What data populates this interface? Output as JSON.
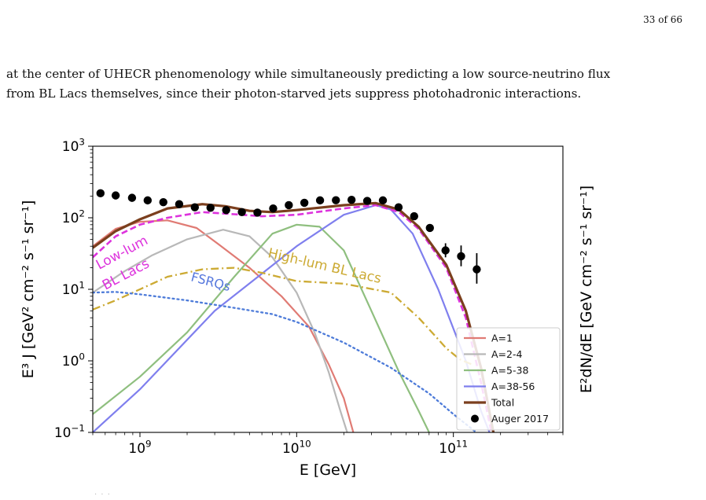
{
  "page": {
    "number": "33 of 66",
    "paragraph_lines": [
      "at the center of UHECR phenomenology while simultaneously predicting a low source-neutrino flux",
      "from BL Lacs themselves, since their photon-starved jets suppress photohadronic interactions."
    ]
  },
  "chart_data": {
    "type": "line",
    "x_scale": "log",
    "y_scale": "log",
    "xlim": [
      500000000,
      500000000000
    ],
    "ylim": [
      0.1,
      1000
    ],
    "xlabel": "E [GeV]",
    "ylabel_left": "E³ J [GeV² cm⁻² s⁻¹ sr⁻¹]",
    "ylabel_right": "E²dN/dE [GeV cm⁻² s⁻¹ sr⁻¹]",
    "x_ticks": [
      {
        "value": 1000000000,
        "label": "10",
        "exp": "9"
      },
      {
        "value": 10000000000,
        "label": "10",
        "exp": "10"
      },
      {
        "value": 100000000000,
        "label": "10",
        "exp": "11"
      }
    ],
    "y_ticks": [
      {
        "value": 0.1,
        "label": "10",
        "exp": "−1"
      },
      {
        "value": 1,
        "label": "10",
        "exp": "0"
      },
      {
        "value": 10,
        "label": "10",
        "exp": "1"
      },
      {
        "value": 100,
        "label": "10",
        "exp": "2"
      },
      {
        "value": 1000,
        "label": "10",
        "exp": "3"
      }
    ],
    "annotations": [
      {
        "text": "Low-lum",
        "color": "#dd33dd"
      },
      {
        "text": "BL Lacs",
        "color": "#dd33dd"
      },
      {
        "text": "High-lum BL Lacs",
        "color": "#ccaa33"
      },
      {
        "text": "FSRQs",
        "color": "#5577dd"
      }
    ],
    "legend": {
      "placement": "lower-right",
      "entries": [
        {
          "label": "A=1",
          "color": "#e07b74",
          "style": "line"
        },
        {
          "label": "A=2-4",
          "color": "#b8b8b8",
          "style": "line"
        },
        {
          "label": "A=5-38",
          "color": "#8fbf7f",
          "style": "line"
        },
        {
          "label": "A=38-56",
          "color": "#7f7fee",
          "style": "line"
        },
        {
          "label": "Total",
          "color": "#7b3f1e",
          "style": "thick-line"
        },
        {
          "label": "Auger 2017",
          "color": "#000000",
          "style": "marker"
        }
      ]
    },
    "series": [
      {
        "name": "A=1",
        "color": "#e07b74",
        "width": 2.2,
        "dash": "",
        "x": [
          500000000.0,
          700000000.0,
          1000000000.0,
          1500000000.0,
          2300000000.0,
          3200000000.0,
          5000000000.0,
          8000000000.0,
          12000000000.0,
          16000000000.0,
          20000000000.0,
          23000000000.0
        ],
        "y": [
          40,
          70,
          88,
          92,
          72,
          42,
          20,
          8,
          3,
          0.9,
          0.3,
          0.1
        ]
      },
      {
        "name": "A=2-4",
        "color": "#b8b8b8",
        "width": 2.2,
        "dash": "",
        "x": [
          500000000.0,
          800000000.0,
          1200000000.0,
          2000000000.0,
          3400000000.0,
          5000000000.0,
          7000000000.0,
          10000000000.0,
          13000000000.0,
          16000000000.0,
          19000000000.0,
          21000000000.0
        ],
        "y": [
          9,
          18,
          30,
          50,
          68,
          55,
          28,
          9,
          2.5,
          0.7,
          0.2,
          0.1
        ]
      },
      {
        "name": "A=5-38",
        "color": "#8fbf7f",
        "width": 2.2,
        "dash": "",
        "x": [
          500000000.0,
          1000000000.0,
          2000000000.0,
          4000000000.0,
          7000000000.0,
          10000000000.0,
          14000000000.0,
          20000000000.0,
          30000000000.0,
          45000000000.0,
          60000000000.0,
          70000000000.0
        ],
        "y": [
          0.18,
          0.6,
          2.5,
          15,
          60,
          80,
          75,
          35,
          5,
          0.7,
          0.2,
          0.1
        ]
      },
      {
        "name": "A=38-56",
        "color": "#7f7fee",
        "width": 2.2,
        "dash": "",
        "x": [
          500000000.0,
          1000000000.0,
          3000000000.0,
          10000000000.0,
          20000000000.0,
          32000000000.0,
          40000000000.0,
          55000000000.0,
          80000000000.0,
          120000000000.0,
          150000000000.0,
          170000000000.0
        ],
        "y": [
          0.1,
          0.4,
          5,
          40,
          110,
          150,
          130,
          60,
          10,
          1,
          0.2,
          0.1
        ]
      },
      {
        "name": "Low-lum BL Lacs",
        "color": "#dd33dd",
        "width": 2.6,
        "dash": "8,4",
        "x": [
          500000000.0,
          700000000.0,
          1000000000.0,
          1500000000.0,
          2500000000.0,
          4000000000.0,
          6000000000.0,
          10000000000.0,
          20000000000.0,
          32000000000.0,
          45000000000.0,
          60000000000.0,
          90000000000.0,
          120000000000.0,
          150000000000.0,
          175000000000.0
        ],
        "y": [
          28,
          55,
          80,
          100,
          120,
          112,
          105,
          110,
          135,
          150,
          120,
          70,
          20,
          4,
          0.5,
          0.1
        ]
      },
      {
        "name": "Total",
        "color": "#7b3f1e",
        "width": 3.2,
        "dash": "",
        "x": [
          500000000.0,
          700000000.0,
          1000000000.0,
          1500000000.0,
          2500000000.0,
          3500000000.0,
          5000000000.0,
          7000000000.0,
          10000000000.0,
          20000000000.0,
          32000000000.0,
          45000000000.0,
          60000000000.0,
          90000000000.0,
          120000000000.0,
          150000000000.0,
          180000000000.0
        ],
        "y": [
          38,
          65,
          95,
          135,
          155,
          145,
          125,
          120,
          128,
          150,
          160,
          130,
          75,
          22,
          5,
          0.8,
          0.1
        ]
      },
      {
        "name": "High-lum BL Lacs",
        "color": "#ccaa33",
        "width": 2.3,
        "dash": "10,4,2,4",
        "x": [
          500000000.0,
          700000000.0,
          1000000000.0,
          1500000000.0,
          2500000000.0,
          4000000000.0,
          6000000000.0,
          10000000000.0,
          20000000000.0,
          40000000000.0,
          60000000000.0,
          80000000000.0,
          90000000000.0,
          110000000000.0,
          130000000000.0
        ],
        "y": [
          5.2,
          7,
          10,
          15,
          19,
          20,
          17,
          13,
          12,
          9,
          4,
          2,
          1.5,
          1.05,
          0.9
        ]
      },
      {
        "name": "FSRQs",
        "color": "#4d7bd9",
        "width": 2.3,
        "dash": "2,4",
        "x": [
          500000000.0,
          700000000.0,
          1000000000.0,
          2000000000.0,
          4000000000.0,
          7000000000.0,
          10000000000.0,
          20000000000.0,
          40000000000.0,
          70000000000.0,
          100000000000.0,
          140000000000.0
        ],
        "y": [
          9,
          9.2,
          8.5,
          7,
          5.5,
          4.5,
          3.5,
          1.8,
          0.8,
          0.35,
          0.18,
          0.1
        ]
      }
    ],
    "data_points": {
      "name": "Auger 2017",
      "color": "#000000",
      "points": [
        {
          "x": 560000000.0,
          "y": 220
        },
        {
          "x": 700000000.0,
          "y": 205
        },
        {
          "x": 890000000.0,
          "y": 190
        },
        {
          "x": 1120000000.0,
          "y": 175
        },
        {
          "x": 1410000000.0,
          "y": 165
        },
        {
          "x": 1780000000.0,
          "y": 155
        },
        {
          "x": 2240000000.0,
          "y": 140
        },
        {
          "x": 2820000000.0,
          "y": 138
        },
        {
          "x": 3550000000.0,
          "y": 128
        },
        {
          "x": 4470000000.0,
          "y": 120
        },
        {
          "x": 5620000000.0,
          "y": 118
        },
        {
          "x": 7080000000.0,
          "y": 135
        },
        {
          "x": 8910000000.0,
          "y": 150
        },
        {
          "x": 11200000000.0,
          "y": 162
        },
        {
          "x": 14100000000.0,
          "y": 175
        },
        {
          "x": 17800000000.0,
          "y": 176
        },
        {
          "x": 22400000000.0,
          "y": 178
        },
        {
          "x": 28200000000.0,
          "y": 172
        },
        {
          "x": 35500000000.0,
          "y": 175
        },
        {
          "x": 44700000000.0,
          "y": 140
        },
        {
          "x": 56200000000.0,
          "y": 105
        },
        {
          "x": 70800000000.0,
          "y": 72
        },
        {
          "x": 89100000000.0,
          "y": 35,
          "lo": 28,
          "hi": 44
        },
        {
          "x": 112000000000.0,
          "y": 29,
          "lo": 21,
          "hi": 41
        },
        {
          "x": 141000000000.0,
          "y": 19,
          "lo": 12,
          "hi": 32
        }
      ]
    }
  }
}
